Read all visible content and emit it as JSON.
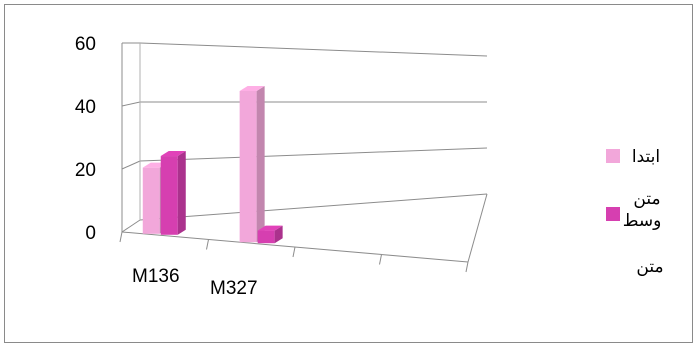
{
  "chart_data": {
    "type": "bar",
    "style": "3d-clustered-column",
    "categories": [
      "M136",
      "M327"
    ],
    "series": [
      {
        "name": "ابتدا متن",
        "values": [
          21,
          48
        ],
        "color": "#F2A7DA"
      },
      {
        "name": "وسط متن",
        "values": [
          25,
          4
        ],
        "color": "#D63FB0"
      }
    ],
    "yticks": [
      "0",
      "20",
      "40",
      "60"
    ],
    "ylim": [
      0,
      60
    ],
    "grid": true,
    "legend_position": "right",
    "legend": [
      {
        "line1": "ابتدا",
        "line2": "متن"
      },
      {
        "line1": "وسط",
        "line2": "متن"
      }
    ]
  }
}
